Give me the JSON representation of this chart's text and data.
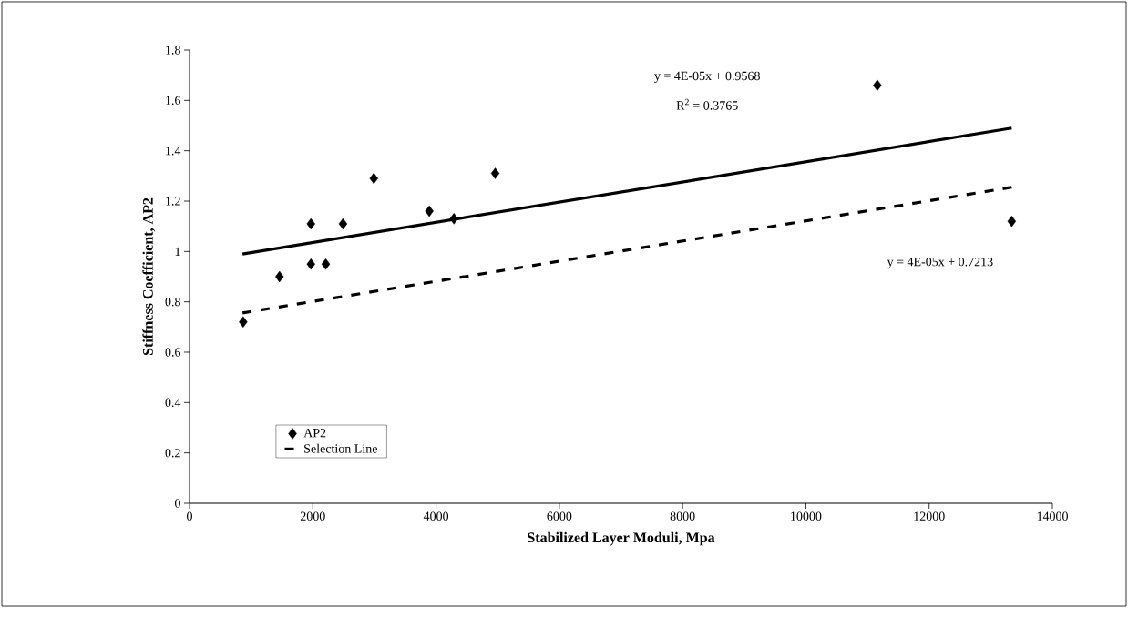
{
  "chart_data": {
    "type": "scatter",
    "xlabel": "Stabilized Layer Moduli, Mpa",
    "ylabel": "Stiffness Coefficient, AP2",
    "xlim": [
      0,
      14000
    ],
    "xticks": [
      0,
      2000,
      4000,
      6000,
      8000,
      10000,
      12000,
      14000
    ],
    "ylim": [
      0,
      1.8
    ],
    "yticks": [
      0,
      0.2,
      0.4,
      0.6,
      0.8,
      1,
      1.2,
      1.4,
      1.6,
      1.8
    ],
    "grid": false,
    "legend": "bottom left",
    "series": [
      {
        "name": "AP2",
        "marker": "diamond",
        "color": "#000000",
        "x": [
          870,
          1460,
          1970,
          1970,
          2210,
          2490,
          2990,
          3890,
          4290,
          4960,
          11160,
          13340
        ],
        "values": [
          0.72,
          0.9,
          1.11,
          0.95,
          0.95,
          1.11,
          1.29,
          1.16,
          1.13,
          1.31,
          1.66,
          1.12
        ]
      },
      {
        "type": "line",
        "line_style": "solid",
        "color": "#000000",
        "x": [
          860,
          13340
        ],
        "values": [
          0.99,
          1.49
        ]
      },
      {
        "name": "Selection Line",
        "type": "line",
        "line_style": "dashed",
        "color": "#000000",
        "x": [
          860,
          13340
        ],
        "values": [
          0.756,
          1.255
        ]
      }
    ],
    "annotations": [
      "y = 4E-05x + 0.9568",
      "R$^{2}$ = 0.3765",
      "y = 4E-05x + 0.7213"
    ]
  }
}
